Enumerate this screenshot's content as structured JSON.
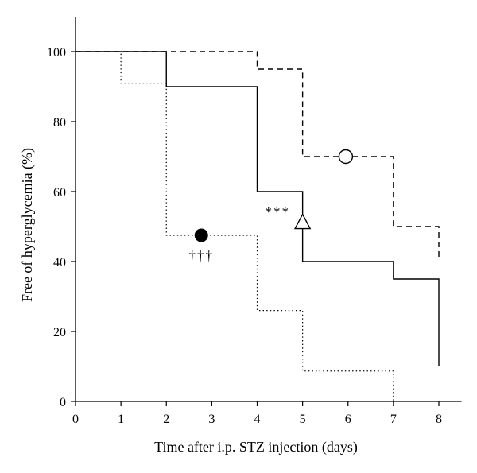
{
  "chart_data": {
    "type": "line",
    "step": true,
    "title": "",
    "xlabel": "Time after i.p. STZ injection (days)",
    "ylabel": "Free of hyperglycemia (%)",
    "xlim": [
      0,
      8.5
    ],
    "ylim": [
      0,
      110
    ],
    "xticks": [
      0,
      1,
      2,
      3,
      4,
      5,
      6,
      7,
      8
    ],
    "yticks": [
      0,
      20,
      40,
      60,
      80,
      100
    ],
    "grid": false,
    "legend": "none",
    "series": [
      {
        "style": "dashed",
        "marker": "open-circle",
        "marker_at": [
          5.95,
          70
        ],
        "x": [
          0,
          4,
          4,
          5,
          5,
          7,
          7,
          8,
          8
        ],
        "y": [
          100,
          100,
          95,
          95,
          70,
          70,
          50,
          50,
          41
        ]
      },
      {
        "style": "solid",
        "marker": "open-triangle",
        "marker_at": [
          5.0,
          51
        ],
        "annotation": "***",
        "annotation_at": [
          4.45,
          53
        ],
        "x": [
          0,
          2,
          2,
          4,
          4,
          5,
          5,
          7,
          7,
          8,
          8
        ],
        "y": [
          100,
          100,
          90,
          90,
          60,
          60,
          40,
          40,
          35,
          35,
          10
        ]
      },
      {
        "style": "dotted",
        "marker": "filled-circle",
        "marker_at": [
          2.77,
          47.5
        ],
        "annotation": "†††",
        "annotation_at": [
          2.77,
          40.5
        ],
        "x": [
          0,
          1,
          1,
          2,
          2,
          4,
          4,
          5,
          5,
          7,
          7
        ],
        "y": [
          100,
          100,
          91,
          91,
          47.5,
          47.5,
          26,
          26,
          8.7,
          8.7,
          0
        ]
      }
    ]
  }
}
